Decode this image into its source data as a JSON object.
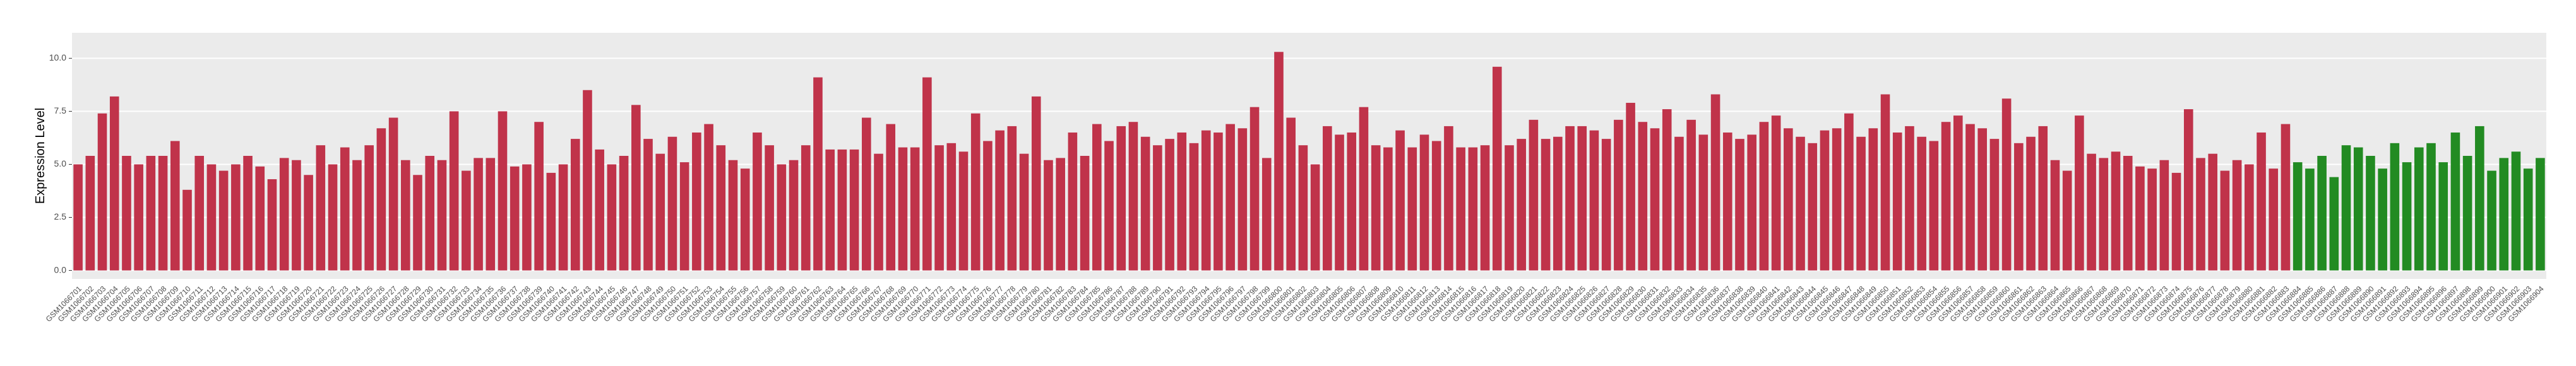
{
  "chart_data": {
    "type": "bar",
    "y_label": "Expression Level",
    "categories": [
      "GSM1066701",
      "GSM1066702",
      "GSM1066703",
      "GSM1066704",
      "GSM1066705",
      "GSM1066706",
      "GSM1066707",
      "GSM1066708",
      "GSM1066709",
      "GSM1066710",
      "GSM1066711",
      "GSM1066712",
      "GSM1066713",
      "GSM1066714",
      "GSM1066715",
      "GSM1066716",
      "GSM1066717",
      "GSM1066718",
      "GSM1066719",
      "GSM1066720",
      "GSM1066721",
      "GSM1066722",
      "GSM1066723",
      "GSM1066724",
      "GSM1066725",
      "GSM1066726",
      "GSM1066727",
      "GSM1066728",
      "GSM1066729",
      "GSM1066730",
      "GSM1066731",
      "GSM1066732",
      "GSM1066733",
      "GSM1066734",
      "GSM1066735",
      "GSM1066736",
      "GSM1066737",
      "GSM1066738",
      "GSM1066739",
      "GSM1066740",
      "GSM1066741",
      "GSM1066742",
      "GSM1066743",
      "GSM1066744",
      "GSM1066745",
      "GSM1066746",
      "GSM1066747",
      "GSM1066748",
      "GSM1066749",
      "GSM1066750",
      "GSM1066751",
      "GSM1066752",
      "GSM1066753",
      "GSM1066754",
      "GSM1066755",
      "GSM1066756",
      "GSM1066757",
      "GSM1066758",
      "GSM1066759",
      "GSM1066760",
      "GSM1066761",
      "GSM1066762",
      "GSM1066763",
      "GSM1066764",
      "GSM1066765",
      "GSM1066766",
      "GSM1066767",
      "GSM1066768",
      "GSM1066769",
      "GSM1066770",
      "GSM1066771",
      "GSM1066772",
      "GSM1066773",
      "GSM1066774",
      "GSM1066775",
      "GSM1066776",
      "GSM1066777",
      "GSM1066778",
      "GSM1066779",
      "GSM1066780",
      "GSM1066781",
      "GSM1066782",
      "GSM1066783",
      "GSM1066784",
      "GSM1066785",
      "GSM1066786",
      "GSM1066787",
      "GSM1066788",
      "GSM1066789",
      "GSM1066790",
      "GSM1066791",
      "GSM1066792",
      "GSM1066793",
      "GSM1066794",
      "GSM1066795",
      "GSM1066796",
      "GSM1066797",
      "GSM1066798",
      "GSM1066799",
      "GSM1066800",
      "GSM1066801",
      "GSM1066802",
      "GSM1066803",
      "GSM1066804",
      "GSM1066805",
      "GSM1066806",
      "GSM1066807",
      "GSM1066808",
      "GSM1066809",
      "GSM1066810",
      "GSM1066811",
      "GSM1066812",
      "GSM1066813",
      "GSM1066814",
      "GSM1066815",
      "GSM1066816",
      "GSM1066817",
      "GSM1066818",
      "GSM1066819",
      "GSM1066820",
      "GSM1066821",
      "GSM1066822",
      "GSM1066823",
      "GSM1066824",
      "GSM1066825",
      "GSM1066826",
      "GSM1066827",
      "GSM1066828",
      "GSM1066829",
      "GSM1066830",
      "GSM1066831",
      "GSM1066832",
      "GSM1066833",
      "GSM1066834",
      "GSM1066835",
      "GSM1066836",
      "GSM1066837",
      "GSM1066838",
      "GSM1066839",
      "GSM1066840",
      "GSM1066841",
      "GSM1066842",
      "GSM1066843",
      "GSM1066844",
      "GSM1066845",
      "GSM1066846",
      "GSM1066847",
      "GSM1066848",
      "GSM1066849",
      "GSM1066850",
      "GSM1066851",
      "GSM1066852",
      "GSM1066853",
      "GSM1066854",
      "GSM1066855",
      "GSM1066856",
      "GSM1066857",
      "GSM1066858",
      "GSM1066859",
      "GSM1066860",
      "GSM1066861",
      "GSM1066862",
      "GSM1066863",
      "GSM1066864",
      "GSM1066865",
      "GSM1066866",
      "GSM1066867",
      "GSM1066868",
      "GSM1066869",
      "GSM1066870",
      "GSM1066871",
      "GSM1066872",
      "GSM1066873",
      "GSM1066874",
      "GSM1066875",
      "GSM1066876",
      "GSM1066877",
      "GSM1066878",
      "GSM1066879",
      "GSM1066880",
      "GSM1066881",
      "GSM1066882",
      "GSM1066883",
      "GSM1066884",
      "GSM1066885",
      "GSM1066886",
      "GSM1066887",
      "GSM1066888",
      "GSM1066889",
      "GSM1066890",
      "GSM1066891",
      "GSM1066892",
      "GSM1066893",
      "GSM1066894",
      "GSM1066895",
      "GSM1066896",
      "GSM1066897",
      "GSM1066898",
      "GSM1066899",
      "GSM1066900",
      "GSM1066901",
      "GSM1066902",
      "GSM1066903",
      "GSM1066904"
    ],
    "values": [
      5.0,
      5.4,
      7.4,
      8.2,
      5.4,
      5.0,
      5.4,
      5.4,
      6.1,
      3.8,
      5.4,
      5.0,
      4.7,
      5.0,
      5.4,
      4.9,
      4.3,
      5.3,
      5.2,
      4.5,
      5.9,
      5.0,
      5.8,
      5.2,
      5.9,
      6.7,
      7.2,
      5.2,
      4.5,
      5.4,
      5.2,
      7.5,
      4.7,
      5.3,
      5.3,
      7.5,
      4.9,
      5.0,
      7.0,
      4.6,
      5.0,
      6.2,
      8.5,
      5.7,
      5.0,
      5.4,
      7.8,
      6.2,
      5.5,
      6.3,
      5.1,
      6.5,
      6.9,
      5.9,
      5.2,
      4.8,
      6.5,
      5.9,
      5.0,
      5.2,
      5.9,
      9.1,
      5.7,
      5.7,
      5.7,
      7.2,
      5.5,
      6.9,
      5.8,
      5.8,
      9.1,
      5.9,
      6.0,
      5.6,
      7.4,
      6.1,
      6.6,
      6.8,
      5.5,
      8.2,
      5.2,
      5.3,
      6.5,
      5.4,
      6.9,
      6.1,
      6.8,
      7.0,
      6.3,
      5.9,
      6.2,
      6.5,
      6.0,
      6.6,
      6.5,
      6.9,
      6.7,
      7.7,
      5.3,
      10.3,
      7.2,
      5.9,
      5.0,
      6.8,
      6.4,
      6.5,
      7.7,
      5.9,
      5.8,
      6.6,
      5.8,
      6.4,
      6.1,
      6.8,
      5.8,
      5.8,
      5.9,
      9.6,
      5.9,
      6.2,
      7.1,
      6.2,
      6.3,
      6.8,
      6.8,
      6.6,
      6.2,
      7.1,
      7.9,
      7.0,
      6.7,
      7.6,
      6.3,
      7.1,
      6.4,
      8.3,
      6.5,
      6.2,
      6.4,
      7.0,
      7.3,
      6.7,
      6.3,
      6.0,
      6.6,
      6.7,
      7.4,
      6.3,
      6.7,
      8.3,
      6.5,
      6.8,
      6.3,
      6.1,
      7.0,
      7.3,
      6.9,
      6.7,
      6.2,
      8.1,
      6.0,
      6.3,
      6.8,
      5.2,
      4.7,
      7.3,
      5.5,
      5.3,
      5.6,
      5.4,
      4.9,
      4.8,
      5.2,
      4.6,
      7.6,
      5.3,
      5.5,
      4.7,
      5.2,
      5.0,
      6.5,
      4.8,
      6.9,
      5.1,
      4.8,
      5.4,
      4.4,
      5.9,
      5.8,
      5.4,
      4.8,
      6.0,
      5.1,
      5.8,
      6.0,
      5.1,
      6.5,
      5.4,
      6.8,
      4.7,
      5.3,
      5.6,
      4.8,
      5.3
    ],
    "colors": [
      "#c0334a",
      "#c0334a",
      "#c0334a",
      "#c0334a",
      "#c0334a",
      "#c0334a",
      "#c0334a",
      "#c0334a",
      "#c0334a",
      "#c0334a",
      "#c0334a",
      "#c0334a",
      "#c0334a",
      "#c0334a",
      "#c0334a",
      "#c0334a",
      "#c0334a",
      "#c0334a",
      "#c0334a",
      "#c0334a",
      "#c0334a",
      "#c0334a",
      "#c0334a",
      "#c0334a",
      "#c0334a",
      "#c0334a",
      "#c0334a",
      "#c0334a",
      "#c0334a",
      "#c0334a",
      "#c0334a",
      "#c0334a",
      "#c0334a",
      "#c0334a",
      "#c0334a",
      "#c0334a",
      "#c0334a",
      "#c0334a",
      "#c0334a",
      "#c0334a",
      "#c0334a",
      "#c0334a",
      "#c0334a",
      "#c0334a",
      "#c0334a",
      "#c0334a",
      "#c0334a",
      "#c0334a",
      "#c0334a",
      "#c0334a",
      "#c0334a",
      "#c0334a",
      "#c0334a",
      "#c0334a",
      "#c0334a",
      "#c0334a",
      "#c0334a",
      "#c0334a",
      "#c0334a",
      "#c0334a",
      "#c0334a",
      "#c0334a",
      "#c0334a",
      "#c0334a",
      "#c0334a",
      "#c0334a",
      "#c0334a",
      "#c0334a",
      "#c0334a",
      "#c0334a",
      "#c0334a",
      "#c0334a",
      "#c0334a",
      "#c0334a",
      "#c0334a",
      "#c0334a",
      "#c0334a",
      "#c0334a",
      "#c0334a",
      "#c0334a",
      "#c0334a",
      "#c0334a",
      "#c0334a",
      "#c0334a",
      "#c0334a",
      "#c0334a",
      "#c0334a",
      "#c0334a",
      "#c0334a",
      "#c0334a",
      "#c0334a",
      "#c0334a",
      "#c0334a",
      "#c0334a",
      "#c0334a",
      "#c0334a",
      "#c0334a",
      "#c0334a",
      "#c0334a",
      "#c0334a",
      "#c0334a",
      "#c0334a",
      "#c0334a",
      "#c0334a",
      "#c0334a",
      "#c0334a",
      "#c0334a",
      "#c0334a",
      "#c0334a",
      "#c0334a",
      "#c0334a",
      "#c0334a",
      "#c0334a",
      "#c0334a",
      "#c0334a",
      "#c0334a",
      "#c0334a",
      "#c0334a",
      "#c0334a",
      "#c0334a",
      "#c0334a",
      "#c0334a",
      "#c0334a",
      "#c0334a",
      "#c0334a",
      "#c0334a",
      "#c0334a",
      "#c0334a",
      "#c0334a",
      "#c0334a",
      "#c0334a",
      "#c0334a",
      "#c0334a",
      "#c0334a",
      "#c0334a",
      "#c0334a",
      "#c0334a",
      "#c0334a",
      "#c0334a",
      "#c0334a",
      "#c0334a",
      "#c0334a",
      "#c0334a",
      "#c0334a",
      "#c0334a",
      "#c0334a",
      "#c0334a",
      "#c0334a",
      "#c0334a",
      "#c0334a",
      "#c0334a",
      "#c0334a",
      "#c0334a",
      "#c0334a",
      "#c0334a",
      "#c0334a",
      "#c0334a",
      "#c0334a",
      "#c0334a",
      "#c0334a",
      "#c0334a",
      "#c0334a",
      "#c0334a",
      "#c0334a",
      "#c0334a",
      "#c0334a",
      "#c0334a",
      "#c0334a",
      "#c0334a",
      "#c0334a",
      "#c0334a",
      "#c0334a",
      "#c0334a",
      "#c0334a",
      "#c0334a",
      "#c0334a",
      "#c0334a",
      "#c0334a",
      "#c0334a",
      "#c0334a",
      "#c0334a",
      "#c0334a",
      "#c0334a",
      "#228b22",
      "#228b22",
      "#228b22",
      "#228b22",
      "#228b22",
      "#228b22",
      "#228b22",
      "#228b22",
      "#228b22",
      "#228b22",
      "#228b22",
      "#228b22",
      "#228b22",
      "#228b22",
      "#228b22",
      "#228b22",
      "#228b22",
      "#228b22",
      "#228b22",
      "#228b22",
      "#228b22"
    ],
    "ylim": [
      -0.4,
      11.2
    ],
    "yticks": [
      {
        "value": 0,
        "label": "0.0"
      },
      {
        "value": 2.5,
        "label": "2.5"
      },
      {
        "value": 5,
        "label": "5.0"
      },
      {
        "value": 7.5,
        "label": "7.5"
      },
      {
        "value": 10,
        "label": "10.0"
      }
    ],
    "grid": true
  }
}
